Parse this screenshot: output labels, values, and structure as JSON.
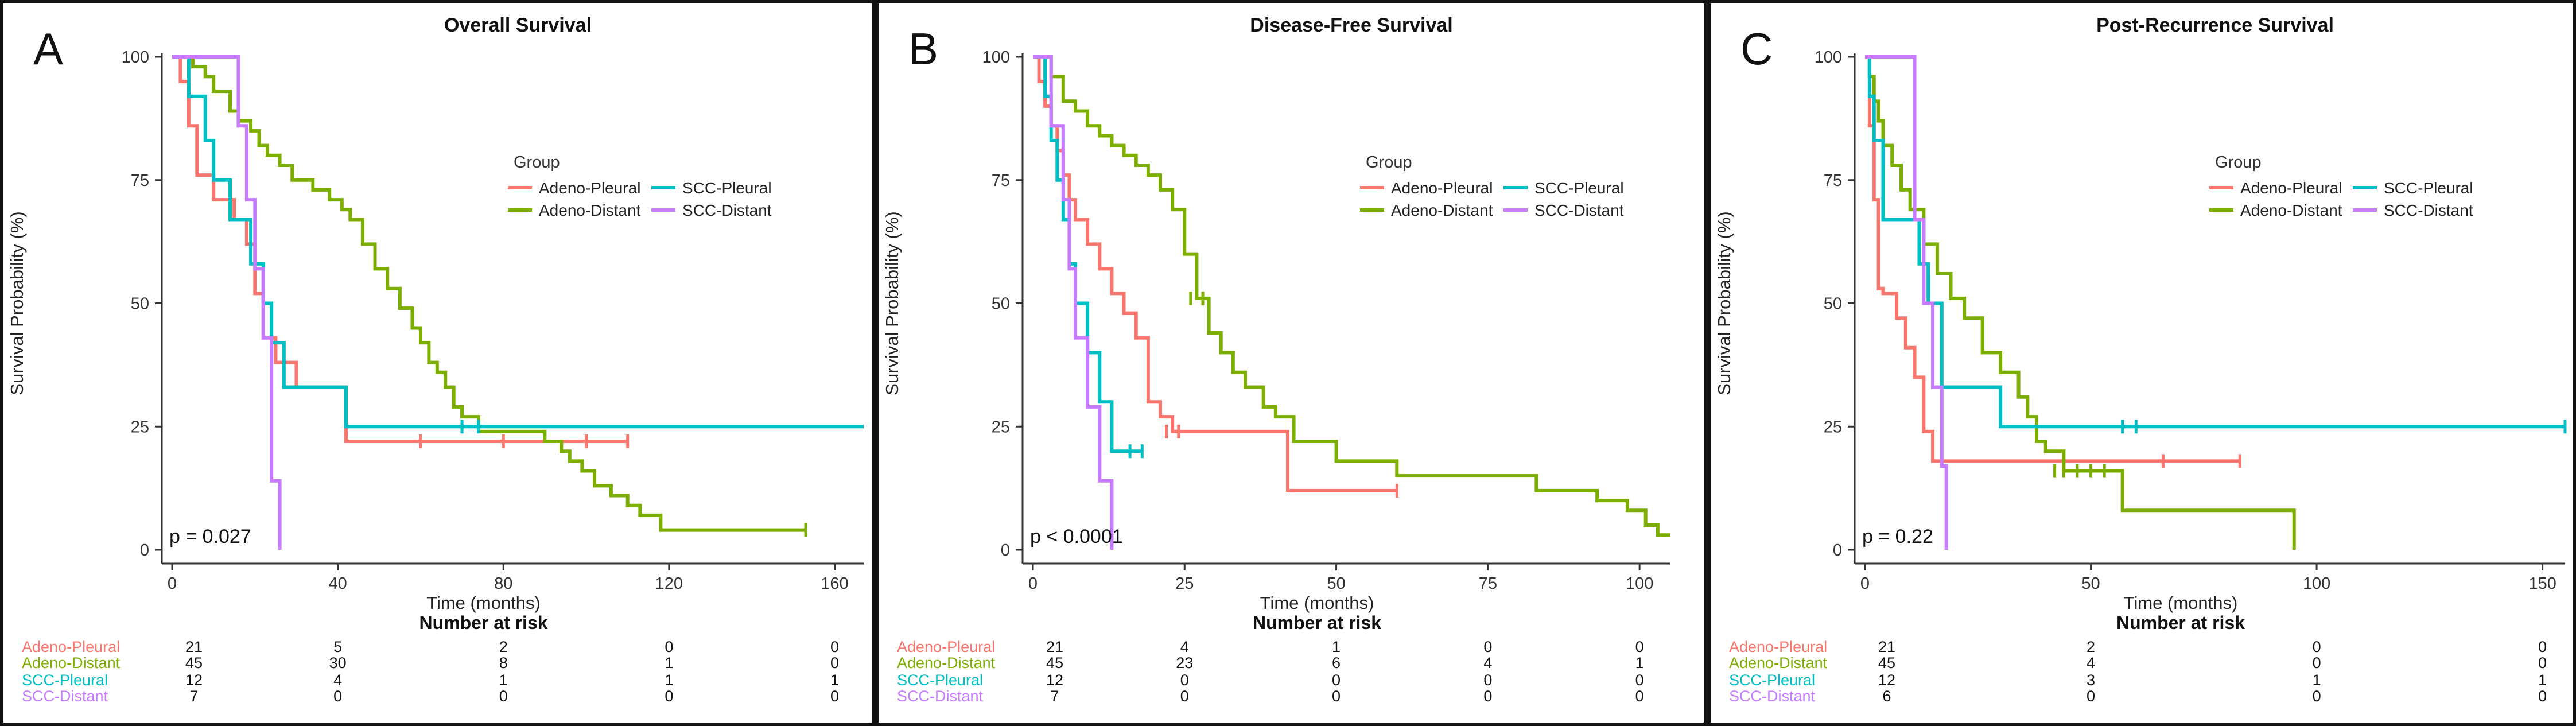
{
  "chart_data": [
    {
      "type": "line",
      "panel_label": "A",
      "title": "Overall Survival",
      "xlabel": "Time (months)",
      "ylabel": "Survival Probability (%)",
      "xlim": [
        0,
        167
      ],
      "ylim": [
        0,
        100
      ],
      "xticks": [
        0,
        40,
        80,
        120,
        160
      ],
      "yticks": [
        0,
        25,
        50,
        75,
        100
      ],
      "pvalue": "p = 0.027",
      "legend": {
        "title": "Group",
        "position": "center-right"
      },
      "series": [
        {
          "name": "Adeno-Pleural",
          "color": "#F8766D",
          "x": [
            0,
            2,
            4,
            6,
            10,
            15,
            18,
            20,
            22,
            25,
            30,
            42,
            60,
            80,
            100,
            110
          ],
          "y": [
            100,
            95,
            86,
            76,
            71,
            67,
            62,
            52,
            43,
            38,
            33,
            22,
            22,
            22,
            22,
            22
          ],
          "censor_x": [
            60,
            80,
            100,
            110
          ],
          "censor_y": [
            22,
            22,
            22,
            22
          ]
        },
        {
          "name": "Adeno-Distant",
          "color": "#7CAE00",
          "x": [
            0,
            5,
            8,
            10,
            14,
            16,
            19,
            21,
            23,
            26,
            29,
            34,
            38,
            41,
            43,
            46,
            49,
            52,
            55,
            58,
            60,
            62,
            64,
            66,
            68,
            70,
            74,
            84,
            88,
            90,
            94,
            96,
            99,
            102,
            106,
            110,
            113,
            118,
            130,
            140,
            153
          ],
          "y": [
            100,
            98,
            96,
            93,
            89,
            87,
            85,
            82,
            80,
            78,
            75,
            73,
            71,
            69,
            67,
            62,
            57,
            53,
            49,
            45,
            42,
            38,
            36,
            33,
            29,
            27,
            24,
            24,
            24,
            22,
            20,
            18,
            16,
            13,
            11,
            9,
            7,
            4,
            4,
            4,
            4
          ],
          "censor_x": [
            153
          ],
          "censor_y": [
            4
          ]
        },
        {
          "name": "SCC-Pleural",
          "color": "#00BFC4",
          "x": [
            0,
            4,
            8,
            10,
            14,
            19,
            22,
            24,
            27,
            40,
            42,
            60,
            70,
            80,
            100,
            167
          ],
          "y": [
            100,
            92,
            83,
            75,
            67,
            58,
            50,
            42,
            33,
            33,
            25,
            25,
            25,
            25,
            25,
            25
          ],
          "censor_x": [
            70,
            74
          ],
          "censor_y": [
            25,
            25
          ]
        },
        {
          "name": "SCC-Distant",
          "color": "#C77CFF",
          "x": [
            0,
            15,
            16,
            18,
            20,
            22,
            24,
            26
          ],
          "y": [
            100,
            100,
            86,
            71,
            57,
            43,
            14,
            0
          ],
          "censor_x": [],
          "censor_y": []
        }
      ],
      "risk_table": {
        "title": "Number at risk",
        "times": [
          0,
          40,
          80,
          120,
          160
        ],
        "rows": [
          {
            "name": "Adeno-Pleural",
            "values": [
              "21",
              "5",
              "2",
              "0",
              "0"
            ]
          },
          {
            "name": "Adeno-Distant",
            "values": [
              "45",
              "30",
              "8",
              "1",
              "0"
            ]
          },
          {
            "name": "SCC-Pleural",
            "values": [
              "12",
              "4",
              "1",
              "1",
              "1"
            ]
          },
          {
            "name": "SCC-Distant",
            "values": [
              "7",
              "0",
              "0",
              "0",
              "0"
            ]
          }
        ]
      }
    },
    {
      "type": "line",
      "panel_label": "B",
      "title": "Disease-Free Survival",
      "xlabel": "Time (months)",
      "ylabel": "Survival Probability (%)",
      "xlim": [
        0,
        105
      ],
      "ylim": [
        0,
        100
      ],
      "xticks": [
        0,
        25,
        50,
        75,
        100
      ],
      "yticks": [
        0,
        25,
        50,
        75,
        100
      ],
      "pvalue": "p < 0.0001",
      "legend": {
        "title": "Group",
        "position": "center-right"
      },
      "series": [
        {
          "name": "Adeno-Pleural",
          "color": "#F8766D",
          "x": [
            0,
            1,
            2,
            3,
            4,
            5,
            6,
            7,
            9,
            11,
            13,
            15,
            17,
            19,
            21,
            23,
            25,
            42,
            60
          ],
          "y": [
            100,
            95,
            90,
            86,
            81,
            76,
            71,
            67,
            62,
            57,
            52,
            48,
            43,
            30,
            27,
            24,
            24,
            12,
            12
          ],
          "censor_x": [
            22,
            24,
            60
          ],
          "censor_y": [
            24,
            24,
            12
          ]
        },
        {
          "name": "Adeno-Distant",
          "color": "#7CAE00",
          "x": [
            0,
            3,
            5,
            7,
            9,
            11,
            13,
            15,
            17,
            19,
            21,
            23,
            25,
            27,
            29,
            31,
            33,
            35,
            38,
            40,
            43,
            50,
            60,
            75,
            78,
            83,
            88,
            93,
            98,
            101,
            103,
            105
          ],
          "y": [
            100,
            96,
            91,
            89,
            86,
            84,
            82,
            80,
            78,
            76,
            73,
            69,
            60,
            51,
            44,
            40,
            36,
            33,
            29,
            27,
            22,
            18,
            15,
            15,
            15,
            12,
            12,
            10,
            8,
            5,
            3,
            3
          ],
          "censor_x": [
            26,
            28
          ],
          "censor_y": [
            51,
            51
          ]
        },
        {
          "name": "SCC-Pleural",
          "color": "#00BFC4",
          "x": [
            0,
            2,
            3,
            4,
            5,
            6,
            7,
            9,
            11,
            13,
            18
          ],
          "y": [
            100,
            92,
            83,
            75,
            67,
            58,
            50,
            40,
            30,
            20,
            20
          ],
          "censor_x": [
            16,
            18
          ],
          "censor_y": [
            20,
            20
          ]
        },
        {
          "name": "SCC-Distant",
          "color": "#C77CFF",
          "x": [
            0,
            3,
            5,
            6,
            7,
            9,
            11,
            12,
            13
          ],
          "y": [
            100,
            86,
            71,
            57,
            43,
            29,
            14,
            14,
            0
          ],
          "censor_x": [],
          "censor_y": []
        }
      ],
      "risk_table": {
        "title": "Number at risk",
        "times": [
          0,
          25,
          50,
          75,
          100
        ],
        "rows": [
          {
            "name": "Adeno-Pleural",
            "values": [
              "21",
              "4",
              "1",
              "0",
              "0"
            ]
          },
          {
            "name": "Adeno-Distant",
            "values": [
              "45",
              "23",
              "6",
              "4",
              "1"
            ]
          },
          {
            "name": "SCC-Pleural",
            "values": [
              "12",
              "0",
              "0",
              "0",
              "0"
            ]
          },
          {
            "name": "SCC-Distant",
            "values": [
              "7",
              "0",
              "0",
              "0",
              "0"
            ]
          }
        ]
      }
    },
    {
      "type": "line",
      "panel_label": "C",
      "title": "Post-Recurrence Survival",
      "xlabel": "Time (months)",
      "ylabel": "Survival Probability (%)",
      "xlim": [
        0,
        155
      ],
      "ylim": [
        0,
        100
      ],
      "xticks": [
        0,
        50,
        100,
        150
      ],
      "yticks": [
        0,
        25,
        50,
        75,
        100
      ],
      "pvalue": "p = 0.22",
      "legend": {
        "title": "Group",
        "position": "center-right"
      },
      "series": [
        {
          "name": "Adeno-Pleural",
          "color": "#F8766D",
          "x": [
            0,
            1,
            2,
            3,
            4,
            7,
            9,
            11,
            13,
            15,
            30,
            60,
            83
          ],
          "y": [
            100,
            86,
            71,
            53,
            52,
            47,
            41,
            35,
            24,
            18,
            18,
            18,
            18
          ],
          "censor_x": [
            66,
            83
          ],
          "censor_y": [
            18,
            18
          ]
        },
        {
          "name": "Adeno-Distant",
          "color": "#7CAE00",
          "x": [
            0,
            1,
            2,
            3,
            4,
            6,
            8,
            10,
            13,
            16,
            19,
            22,
            26,
            30,
            34,
            36,
            38,
            40,
            44,
            48,
            52,
            55,
            57,
            62,
            75,
            95
          ],
          "y": [
            100,
            96,
            91,
            87,
            82,
            78,
            73,
            69,
            62,
            56,
            51,
            47,
            40,
            36,
            31,
            27,
            22,
            20,
            16,
            16,
            16,
            16,
            8,
            8,
            8,
            0
          ],
          "censor_x": [
            42,
            44,
            47,
            50,
            53
          ],
          "censor_y": [
            16,
            16,
            16,
            16,
            16
          ]
        },
        {
          "name": "SCC-Pleural",
          "color": "#00BFC4",
          "x": [
            0,
            1,
            2,
            4,
            8,
            12,
            14,
            17,
            26,
            30,
            60,
            100,
            155
          ],
          "y": [
            100,
            92,
            83,
            67,
            67,
            58,
            50,
            33,
            33,
            25,
            25,
            25,
            25
          ],
          "censor_x": [
            57,
            60,
            155
          ],
          "censor_y": [
            25,
            25,
            25
          ]
        },
        {
          "name": "SCC-Distant",
          "color": "#C77CFF",
          "x": [
            0,
            9,
            11,
            13,
            15,
            17,
            18
          ],
          "y": [
            100,
            100,
            67,
            50,
            33,
            17,
            0
          ],
          "censor_x": [],
          "censor_y": []
        }
      ],
      "risk_table": {
        "title": "Number at risk",
        "times": [
          0,
          50,
          100,
          150
        ],
        "rows": [
          {
            "name": "Adeno-Pleural",
            "values": [
              "21",
              "2",
              "0",
              "0"
            ]
          },
          {
            "name": "Adeno-Distant",
            "values": [
              "45",
              "4",
              "0",
              "0"
            ]
          },
          {
            "name": "SCC-Pleural",
            "values": [
              "12",
              "3",
              "1",
              "1"
            ]
          },
          {
            "name": "SCC-Distant",
            "values": [
              "6",
              "0",
              "0",
              "0"
            ]
          }
        ]
      }
    }
  ]
}
